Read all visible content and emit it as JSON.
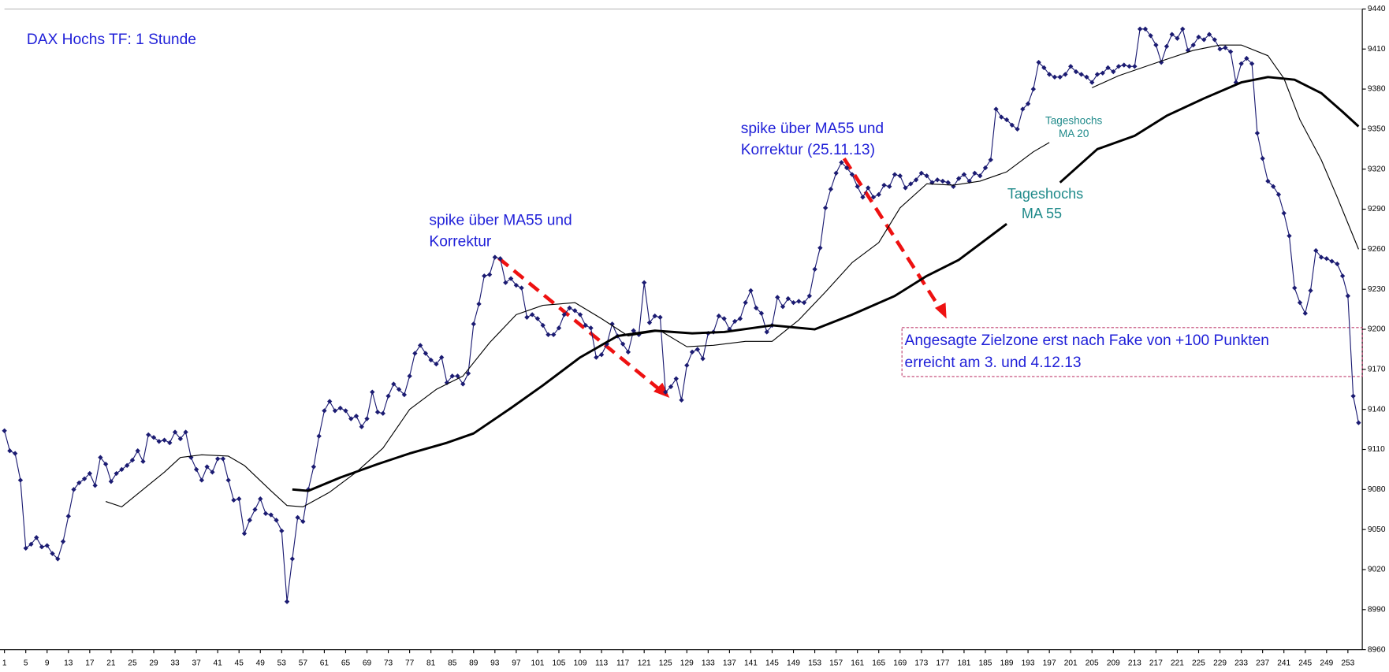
{
  "chart_data": {
    "type": "line",
    "title": "DAX Hochs TF: 1 Stunde",
    "annotations": [
      "spike über MA55 und",
      "Korrektur",
      "spike über MA55 und",
      "Korrektur (25.11.13)",
      "Tageshochs",
      "MA 20",
      "Tageshochs",
      "MA 55",
      "Angesagte Zielzone erst nach Fake von +100 Punkten",
      "erreicht  am 3. und 4.12.13"
    ],
    "xlim": [
      1,
      255.7
    ],
    "ylim": [
      8960,
      9440
    ],
    "yticks": [
      8960,
      8990,
      9020,
      9050,
      9080,
      9110,
      9140,
      9170,
      9200,
      9230,
      9260,
      9290,
      9320,
      9350,
      9380,
      9410,
      9440
    ],
    "xticks": [
      1,
      5,
      9,
      13,
      17,
      21,
      25,
      29,
      33,
      37,
      41,
      45,
      49,
      53,
      57,
      61,
      65,
      69,
      73,
      77,
      81,
      85,
      89,
      93,
      97,
      101,
      105,
      109,
      113,
      117,
      121,
      125,
      129,
      133,
      137,
      141,
      145,
      149,
      153,
      157,
      161,
      165,
      169,
      173,
      177,
      181,
      185,
      189,
      193,
      197,
      201,
      205,
      209,
      213,
      217,
      221,
      225,
      229,
      233,
      237,
      241,
      245,
      249,
      253
    ],
    "series": [
      {
        "color": "#1b1b72",
        "marker": "diamond",
        "x": [
          1,
          2,
          3,
          4,
          5,
          6,
          7,
          8,
          9,
          10,
          11,
          12,
          13,
          14,
          15,
          16,
          17,
          18,
          19,
          20,
          21,
          22,
          23,
          24,
          25,
          26,
          27,
          28,
          29,
          30,
          31,
          32,
          33,
          34,
          35,
          36,
          37,
          38,
          39,
          40,
          41,
          42,
          43,
          44,
          45,
          46,
          47,
          48,
          49,
          50,
          51,
          52,
          53,
          54,
          55,
          56,
          57,
          58,
          59,
          60,
          61,
          62,
          63,
          64,
          65,
          66,
          67,
          68,
          69,
          70,
          71,
          72,
          73,
          74,
          75,
          76,
          77,
          78,
          79,
          80,
          81,
          82,
          83,
          84,
          85,
          86,
          87,
          88,
          89,
          90,
          91,
          92,
          93,
          94,
          95,
          96,
          97,
          98,
          99,
          100,
          101,
          102,
          103,
          104,
          105,
          106,
          107,
          108,
          109,
          110,
          111,
          112,
          113,
          114,
          115,
          116,
          117,
          118,
          119,
          120,
          121,
          122,
          123,
          124,
          125,
          126,
          127,
          128,
          129,
          130,
          131,
          132,
          133,
          134,
          135,
          136,
          137,
          138,
          139,
          140,
          141,
          142,
          143,
          144,
          145,
          146,
          147,
          148,
          149,
          150,
          151,
          152,
          153,
          154,
          155,
          156,
          157,
          158,
          159,
          160,
          161,
          162,
          163,
          164,
          165,
          166,
          167,
          168,
          169,
          170,
          171,
          172,
          173,
          174,
          175,
          176,
          177,
          178,
          179,
          180,
          181,
          182,
          183,
          184,
          185,
          186,
          187,
          188,
          189,
          190,
          191,
          192,
          193,
          194,
          195,
          196,
          197,
          198,
          199,
          200,
          201,
          202,
          203,
          204,
          205,
          206,
          207,
          208,
          209,
          210,
          211,
          212,
          213,
          214,
          215,
          216,
          217,
          218,
          219,
          220,
          221,
          222,
          223,
          224,
          225,
          226,
          227,
          228,
          229,
          230,
          231,
          232,
          233,
          234,
          235,
          236,
          237,
          238,
          239,
          240,
          241,
          242,
          243,
          244,
          245,
          246,
          247,
          248,
          249,
          250,
          251,
          252,
          253,
          254,
          255
        ],
        "values": [
          9124,
          9109,
          9107,
          9087,
          9036,
          9039,
          9044,
          9037,
          9038,
          9032,
          9028,
          9041,
          9060,
          9080,
          9085,
          9088,
          9092,
          9083,
          9104,
          9099,
          9086,
          9092,
          9095,
          9098,
          9102,
          9109,
          9101,
          9121,
          9119,
          9116,
          9117,
          9115,
          9123,
          9118,
          9123,
          9104,
          9095,
          9087,
          9097,
          9093,
          9103,
          9103,
          9087,
          9072,
          9073,
          9047,
          9057,
          9065,
          9073,
          9062,
          9061,
          9057,
          9049,
          8996,
          9028,
          9059,
          9056,
          9080,
          9097,
          9120,
          9139,
          9146,
          9139,
          9141,
          9139,
          9133,
          9135,
          9127,
          9133,
          9153,
          9138,
          9137,
          9150,
          9159,
          9155,
          9151,
          9165,
          9182,
          9188,
          9182,
          9177,
          9174,
          9179,
          9160,
          9165,
          9165,
          9159,
          9167,
          9204,
          9219,
          9240,
          9241,
          9254,
          9253,
          9235,
          9238,
          9233,
          9231,
          9209,
          9211,
          9208,
          9203,
          9196,
          9196,
          9201,
          9211,
          9216,
          9214,
          9211,
          9203,
          9201,
          9179,
          9181,
          9189,
          9204,
          9195,
          9189,
          9183,
          9199,
          9196,
          9235,
          9205,
          9210,
          9209,
          9153,
          9157,
          9163,
          9147,
          9173,
          9183,
          9185,
          9178,
          9197,
          9198,
          9210,
          9208,
          9200,
          9206,
          9208,
          9220,
          9229,
          9216,
          9212,
          9198,
          9203,
          9224,
          9217,
          9223,
          9220,
          9221,
          9220,
          9225,
          9245,
          9261,
          9291,
          9305,
          9317,
          9325,
          9321,
          9316,
          9307,
          9299,
          9306,
          9299,
          9301,
          9308,
          9307,
          9316,
          9315,
          9306,
          9309,
          9312,
          9317,
          9315,
          9310,
          9312,
          9311,
          9310,
          9307,
          9313,
          9316,
          9311,
          9317,
          9315,
          9321,
          9327,
          9365,
          9359,
          9357,
          9353,
          9350,
          9365,
          9369,
          9380,
          9400,
          9396,
          9391,
          9389,
          9389,
          9391,
          9397,
          9393,
          9391,
          9389,
          9385,
          9391,
          9392,
          9396,
          9393,
          9397,
          9398,
          9397,
          9397,
          9425,
          9425,
          9420,
          9413,
          9400,
          9412,
          9421,
          9418,
          9425,
          9409,
          9413,
          9419,
          9417,
          9421,
          9417,
          9410,
          9411,
          9408,
          9385,
          9399,
          9403,
          9399,
          9347,
          9328,
          9311,
          9307,
          9301,
          9287,
          9270,
          9231,
          9220,
          9212,
          9229,
          9259,
          9254,
          9253,
          9251,
          9249,
          9240,
          9225,
          9150,
          9130
        ]
      },
      {
        "color": "#000000",
        "width": 1,
        "x": [
          20,
          23,
          27,
          31,
          34,
          38,
          43,
          46,
          51,
          54,
          57,
          62,
          67,
          72,
          77,
          82,
          87,
          92,
          97,
          102,
          108,
          113,
          118,
          124,
          129,
          134,
          140,
          145,
          150,
          155,
          160,
          165,
          169,
          174,
          179,
          184,
          189,
          194,
          197,
          200,
          205,
          210,
          218,
          224,
          229,
          233,
          238,
          241,
          244,
          248,
          251,
          255
        ],
        "values": [
          9071,
          9067,
          9080,
          9093,
          9104,
          9106,
          9105,
          9098,
          9079,
          9068,
          9067,
          9078,
          9093,
          9111,
          9140,
          9155,
          9165,
          9190,
          9211,
          9218,
          9220,
          9208,
          9195,
          9199,
          9187,
          9188,
          9191,
          9191,
          9207,
          9228,
          9250,
          9265,
          9291,
          9309,
          9308,
          9311,
          9318,
          9333,
          9340,
          null,
          9381,
          9390,
          9401,
          9409,
          9413,
          9413,
          9405,
          9388,
          9357,
          9327,
          9299,
          9260
        ]
      },
      {
        "color": "#000000",
        "width": 2.6,
        "x": [
          55,
          58,
          64,
          71,
          77,
          84,
          89,
          96,
          102,
          109,
          116,
          123,
          130,
          136,
          145,
          153,
          160,
          168,
          174,
          180,
          185,
          189,
          194,
          199,
          206,
          213,
          219,
          226,
          233,
          238,
          243,
          248,
          252,
          255
        ],
        "values": [
          9080,
          9079,
          9089,
          9099,
          9107,
          9115,
          9122,
          9141,
          9158,
          9179,
          9195,
          9199,
          9197,
          9198,
          9203,
          9200,
          9211,
          9225,
          9240,
          9252,
          9267,
          9279,
          null,
          9310,
          9335,
          9345,
          9360,
          9373,
          9385,
          9389,
          9387,
          9377,
          9363,
          9352
        ]
      }
    ]
  }
}
